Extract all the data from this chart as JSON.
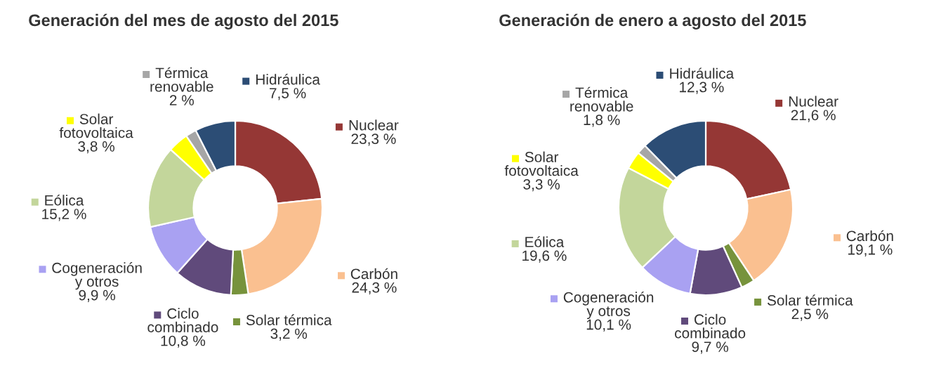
{
  "chart_data": [
    {
      "type": "donut",
      "title": "Generación del mes de agosto del 2015",
      "categories": [
        "Nuclear",
        "Carbón",
        "Solar térmica",
        "Ciclo combinado",
        "Cogeneración y otros",
        "Eólica",
        "Solar fotovoltaica",
        "Térmica renovable",
        "Hidráulica"
      ],
      "values": [
        23.3,
        24.3,
        3.2,
        10.8,
        9.9,
        15.2,
        3.8,
        2,
        7.5
      ],
      "value_labels": [
        "23,3 %",
        "24,3 %",
        "3,2 %",
        "10,8 %",
        "9,9 %",
        "15,2 %",
        "3,8 %",
        "2 %",
        "7,5 %"
      ],
      "colors": [
        "#953735",
        "#fac090",
        "#77933c",
        "#604a7b",
        "#a9a1f2",
        "#c3d69b",
        "#ffff00",
        "#a6a6a6",
        "#2c4d75"
      ],
      "legend": "top left"
    },
    {
      "type": "donut",
      "title": "Generación de enero a agosto del 2015",
      "categories": [
        "Nuclear",
        "Carbón",
        "Solar térmica",
        "Ciclo combinado",
        "Cogeneración y otros",
        "Eólica",
        "Solar fotovoltaica",
        "Térmica renovable",
        "Hidráulica"
      ],
      "values": [
        21.6,
        19.1,
        2.5,
        9.7,
        10.1,
        19.6,
        3.3,
        1.8,
        12.3
      ],
      "value_labels": [
        "21,6 %",
        "19,1 %",
        "2,5 %",
        "9,7 %",
        "10,1 %",
        "19,6 %",
        "3,3 %",
        "1,8 %",
        "12,3 %"
      ],
      "colors": [
        "#953735",
        "#fac090",
        "#77933c",
        "#604a7b",
        "#a9a1f2",
        "#c3d69b",
        "#ffff00",
        "#a6a6a6",
        "#2c4d75"
      ],
      "legend": "top left"
    }
  ]
}
